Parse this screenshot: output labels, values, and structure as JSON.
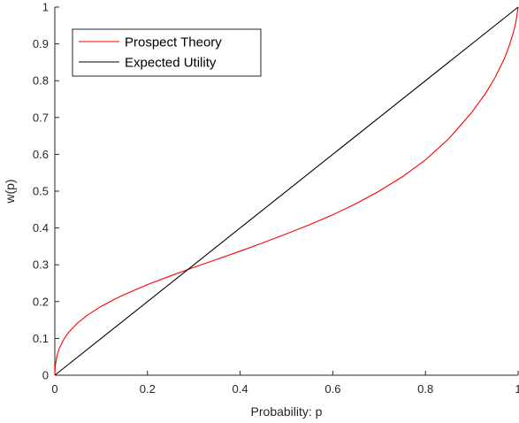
{
  "chart_data": {
    "type": "line",
    "xlabel": "Probability: p",
    "ylabel": "w(p)",
    "xlim": [
      0,
      1
    ],
    "ylim": [
      0,
      1
    ],
    "xticks": [
      0,
      0.2,
      0.4,
      0.6,
      0.8,
      1
    ],
    "xtick_labels": [
      "0",
      "0.2",
      "0.4",
      "0.6",
      "0.8",
      "1"
    ],
    "yticks": [
      0,
      0.1,
      0.2,
      0.3,
      0.4,
      0.5,
      0.6,
      0.7,
      0.8,
      0.9,
      1
    ],
    "ytick_labels": [
      "0",
      "0.1",
      "0.2",
      "0.3",
      "0.4",
      "0.5",
      "0.6",
      "0.7",
      "0.8",
      "0.9",
      "1"
    ],
    "grid": false,
    "legend_position": "top-left",
    "series": [
      {
        "name": "Prospect Theory",
        "color": "#ff0000",
        "x": [
          0,
          0.001,
          0.005,
          0.01,
          0.02,
          0.03,
          0.05,
          0.07,
          0.1,
          0.13,
          0.15,
          0.2,
          0.25,
          0.3,
          0.35,
          0.4,
          0.45,
          0.5,
          0.55,
          0.6,
          0.65,
          0.7,
          0.75,
          0.8,
          0.85,
          0.9,
          0.93,
          0.95,
          0.97,
          0.98,
          0.99,
          0.995,
          1
        ],
        "y": [
          0,
          0.026,
          0.055,
          0.074,
          0.099,
          0.117,
          0.143,
          0.163,
          0.187,
          0.207,
          0.219,
          0.246,
          0.27,
          0.293,
          0.315,
          0.337,
          0.36,
          0.384,
          0.409,
          0.436,
          0.466,
          0.5,
          0.539,
          0.585,
          0.642,
          0.714,
          0.766,
          0.808,
          0.859,
          0.892,
          0.932,
          0.958,
          1
        ]
      },
      {
        "name": "Expected Utility",
        "color": "#000000",
        "x": [
          0,
          1
        ],
        "y": [
          0,
          1
        ]
      }
    ]
  }
}
